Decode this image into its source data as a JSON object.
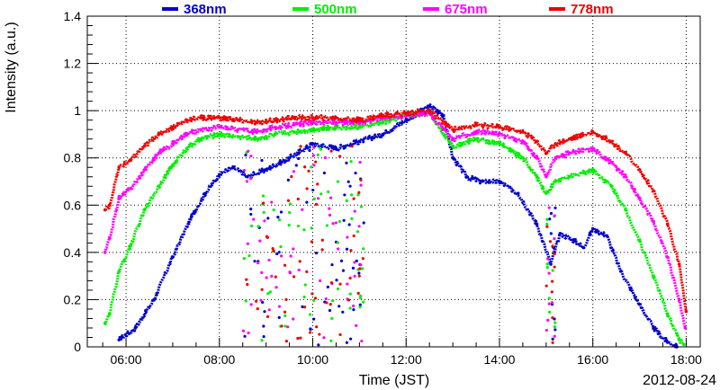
{
  "chart_data": {
    "type": "scatter",
    "title": "",
    "xlabel": "Time (JST)",
    "ylabel": "Intensity (a.u.)",
    "date_label": "2012-08-24",
    "x_unit": "hours JST",
    "xlim": [
      5.17,
      18.3
    ],
    "ylim": [
      0,
      1.4
    ],
    "x_ticks": [
      6,
      8,
      10,
      12,
      14,
      16,
      18
    ],
    "x_tick_labels": [
      "06:00",
      "08:00",
      "10:00",
      "12:00",
      "14:00",
      "16:00",
      "18:00"
    ],
    "y_ticks": [
      0,
      0.2,
      0.4,
      0.6,
      0.8,
      1,
      1.2,
      1.4
    ],
    "y_tick_labels": [
      "0",
      "0.2",
      "0.4",
      "0.6",
      "0.8",
      "1",
      "1.2",
      "1.4"
    ],
    "grid": true,
    "legend_position": "top",
    "series": [
      {
        "name": "368nm",
        "color": "#0000cc",
        "x": [
          5.85,
          6.2,
          6.6,
          7.0,
          7.4,
          7.7,
          8.0,
          8.3,
          8.6,
          9.0,
          9.5,
          10.0,
          10.5,
          11.0,
          11.5,
          12.0,
          12.5,
          12.8,
          13.0,
          13.3,
          13.6,
          14.0,
          14.4,
          14.8,
          15.1,
          15.3,
          15.6,
          15.8,
          16.0,
          16.3,
          16.6,
          17.0,
          17.3,
          17.6,
          17.8
        ],
        "y": [
          0.03,
          0.08,
          0.2,
          0.38,
          0.55,
          0.65,
          0.73,
          0.76,
          0.72,
          0.75,
          0.8,
          0.86,
          0.84,
          0.87,
          0.9,
          0.96,
          1.02,
          0.98,
          0.8,
          0.72,
          0.7,
          0.7,
          0.65,
          0.52,
          0.35,
          0.48,
          0.45,
          0.42,
          0.5,
          0.47,
          0.32,
          0.18,
          0.08,
          0.02,
          0.0
        ]
      },
      {
        "name": "500nm",
        "color": "#00ee00",
        "x": [
          5.55,
          5.65,
          5.85,
          6.1,
          6.4,
          6.7,
          7.0,
          7.3,
          7.6,
          8.0,
          8.4,
          8.8,
          9.2,
          9.6,
          10.0,
          10.5,
          11.0,
          11.5,
          12.0,
          12.5,
          13.0,
          13.5,
          14.0,
          14.5,
          14.8,
          15.0,
          15.2,
          15.5,
          16.0,
          16.4,
          16.7,
          17.0,
          17.3,
          17.6,
          17.85,
          17.95
        ],
        "y": [
          0.1,
          0.14,
          0.32,
          0.43,
          0.58,
          0.68,
          0.77,
          0.84,
          0.88,
          0.9,
          0.89,
          0.88,
          0.9,
          0.91,
          0.92,
          0.93,
          0.93,
          0.95,
          0.98,
          0.99,
          0.85,
          0.88,
          0.86,
          0.8,
          0.72,
          0.65,
          0.7,
          0.72,
          0.75,
          0.68,
          0.58,
          0.45,
          0.3,
          0.14,
          0.03,
          0.01
        ]
      },
      {
        "name": "675nm",
        "color": "#ff00ff",
        "x": [
          5.55,
          5.65,
          5.85,
          6.1,
          6.4,
          6.7,
          7.0,
          7.3,
          7.6,
          8.0,
          8.4,
          8.8,
          9.2,
          9.6,
          10.0,
          10.5,
          11.0,
          11.5,
          12.0,
          12.5,
          13.0,
          13.5,
          14.0,
          14.5,
          14.8,
          15.0,
          15.2,
          15.5,
          16.0,
          16.4,
          16.7,
          17.0,
          17.3,
          17.6,
          17.85,
          17.98
        ],
        "y": [
          0.4,
          0.46,
          0.63,
          0.67,
          0.75,
          0.82,
          0.86,
          0.9,
          0.92,
          0.93,
          0.92,
          0.91,
          0.93,
          0.94,
          0.95,
          0.95,
          0.95,
          0.97,
          0.98,
          0.99,
          0.88,
          0.91,
          0.9,
          0.87,
          0.8,
          0.72,
          0.8,
          0.82,
          0.84,
          0.78,
          0.72,
          0.63,
          0.53,
          0.38,
          0.2,
          0.08
        ]
      },
      {
        "name": "778nm",
        "color": "#ee0000",
        "x": [
          5.55,
          5.65,
          5.85,
          6.1,
          6.4,
          6.7,
          7.0,
          7.3,
          7.6,
          8.0,
          8.4,
          8.8,
          9.2,
          9.6,
          10.0,
          10.5,
          11.0,
          11.5,
          12.0,
          12.5,
          13.0,
          13.5,
          14.0,
          14.5,
          14.8,
          15.0,
          15.2,
          15.5,
          16.0,
          16.4,
          16.7,
          17.0,
          17.3,
          17.6,
          17.85,
          18.0
        ],
        "y": [
          0.58,
          0.6,
          0.76,
          0.79,
          0.85,
          0.9,
          0.93,
          0.96,
          0.97,
          0.97,
          0.96,
          0.95,
          0.96,
          0.97,
          0.97,
          0.97,
          0.96,
          0.98,
          0.99,
          1.0,
          0.92,
          0.94,
          0.93,
          0.91,
          0.87,
          0.82,
          0.86,
          0.88,
          0.91,
          0.87,
          0.82,
          0.75,
          0.66,
          0.52,
          0.35,
          0.15
        ]
      }
    ]
  }
}
